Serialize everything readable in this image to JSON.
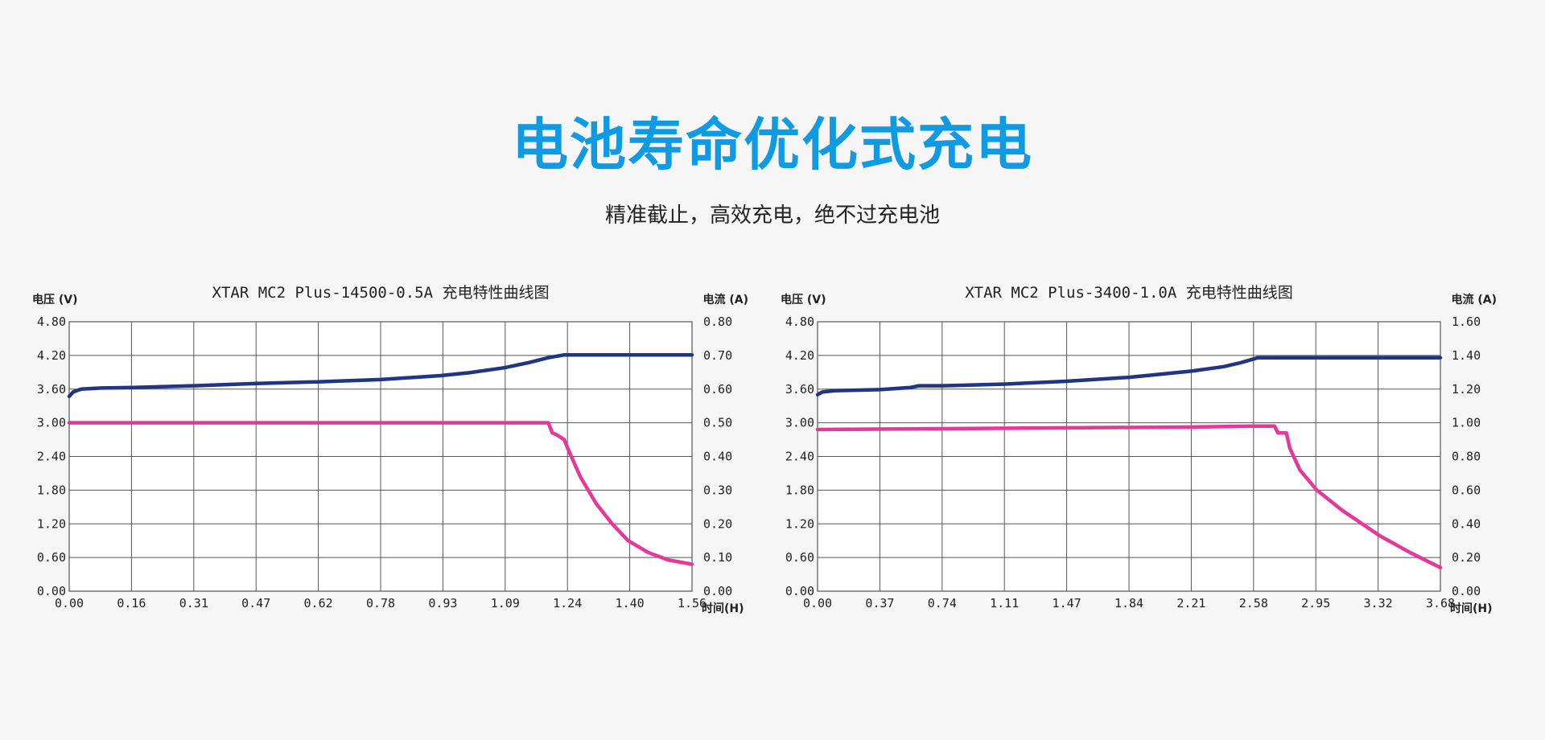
{
  "header": {
    "title": "电池寿命优化式充电",
    "subtitle": "精准截止，高效充电，绝不过充电池"
  },
  "colors": {
    "title": "#0f9be3",
    "voltage": "#203584",
    "current": "#e4399a",
    "grid": "#555555"
  },
  "chart_data": [
    {
      "type": "line",
      "title": "XTAR MC2 Plus-14500-0.5A 充电特性曲线图",
      "ylabel": "电压 (V)",
      "y2label": "电流 (A)",
      "xlabel": "时间(H)",
      "x_ticks": [
        "0.00",
        "0.16",
        "0.31",
        "0.47",
        "0.62",
        "0.78",
        "0.93",
        "1.09",
        "1.24",
        "1.40",
        "1.56"
      ],
      "y_ticks": [
        "0.00",
        "0.60",
        "1.20",
        "1.80",
        "2.40",
        "3.00",
        "3.60",
        "4.20",
        "4.80"
      ],
      "y2_ticks": [
        "0.00",
        "0.10",
        "0.20",
        "0.30",
        "0.40",
        "0.50",
        "0.60",
        "0.70",
        "0.80"
      ],
      "xlim": [
        0,
        1.56
      ],
      "ylim": [
        0,
        4.8
      ],
      "y2lim": [
        0,
        0.8
      ],
      "grid": true,
      "series": [
        {
          "axis": "left",
          "x": [
            0,
            0.01,
            0.03,
            0.08,
            0.16,
            0.31,
            0.47,
            0.62,
            0.78,
            0.93,
            1.0,
            1.09,
            1.15,
            1.2,
            1.24,
            1.3,
            1.4,
            1.56
          ],
          "values": [
            3.47,
            3.55,
            3.6,
            3.62,
            3.63,
            3.66,
            3.7,
            3.73,
            3.77,
            3.84,
            3.89,
            3.98,
            4.07,
            4.16,
            4.21,
            4.21,
            4.21,
            4.21
          ]
        },
        {
          "axis": "right",
          "x": [
            0,
            0.3,
            0.6,
            0.9,
            1.1,
            1.2,
            1.21,
            1.22,
            1.24,
            1.25,
            1.28,
            1.32,
            1.36,
            1.4,
            1.45,
            1.5,
            1.56
          ],
          "values": [
            0.5,
            0.5,
            0.5,
            0.5,
            0.5,
            0.5,
            0.47,
            0.465,
            0.45,
            0.42,
            0.34,
            0.26,
            0.2,
            0.15,
            0.115,
            0.093,
            0.08
          ]
        }
      ]
    },
    {
      "type": "line",
      "title": "XTAR MC2 Plus-3400-1.0A 充电特性曲线图",
      "ylabel": "电压 (V)",
      "y2label": "电流 (A)",
      "xlabel": "时间(H)",
      "x_ticks": [
        "0.00",
        "0.37",
        "0.74",
        "1.11",
        "1.47",
        "1.84",
        "2.21",
        "2.58",
        "2.95",
        "3.32",
        "3.68"
      ],
      "y_ticks": [
        "0.00",
        "0.60",
        "1.20",
        "1.80",
        "2.40",
        "3.00",
        "3.60",
        "4.20",
        "4.80"
      ],
      "y2_ticks": [
        "0.00",
        "0.20",
        "0.40",
        "0.60",
        "0.80",
        "1.00",
        "1.20",
        "1.40",
        "1.60"
      ],
      "xlim": [
        0,
        3.68
      ],
      "ylim": [
        0,
        4.8
      ],
      "y2lim": [
        0,
        1.6
      ],
      "grid": true,
      "series": [
        {
          "axis": "left",
          "x": [
            0,
            0.03,
            0.1,
            0.37,
            0.55,
            0.6,
            0.74,
            1.11,
            1.47,
            1.84,
            2.21,
            2.4,
            2.5,
            2.58,
            2.6,
            2.95,
            3.32,
            3.68
          ],
          "values": [
            3.5,
            3.55,
            3.57,
            3.59,
            3.63,
            3.66,
            3.66,
            3.69,
            3.74,
            3.81,
            3.92,
            4.0,
            4.07,
            4.14,
            4.16,
            4.16,
            4.16,
            4.16
          ]
        },
        {
          "axis": "right",
          "x": [
            0,
            0.74,
            1.47,
            2.21,
            2.58,
            2.7,
            2.72,
            2.77,
            2.79,
            2.85,
            2.95,
            3.1,
            3.32,
            3.5,
            3.68
          ],
          "values": [
            0.96,
            0.965,
            0.97,
            0.975,
            0.98,
            0.98,
            0.94,
            0.94,
            0.85,
            0.72,
            0.6,
            0.48,
            0.33,
            0.23,
            0.14
          ]
        }
      ]
    }
  ]
}
